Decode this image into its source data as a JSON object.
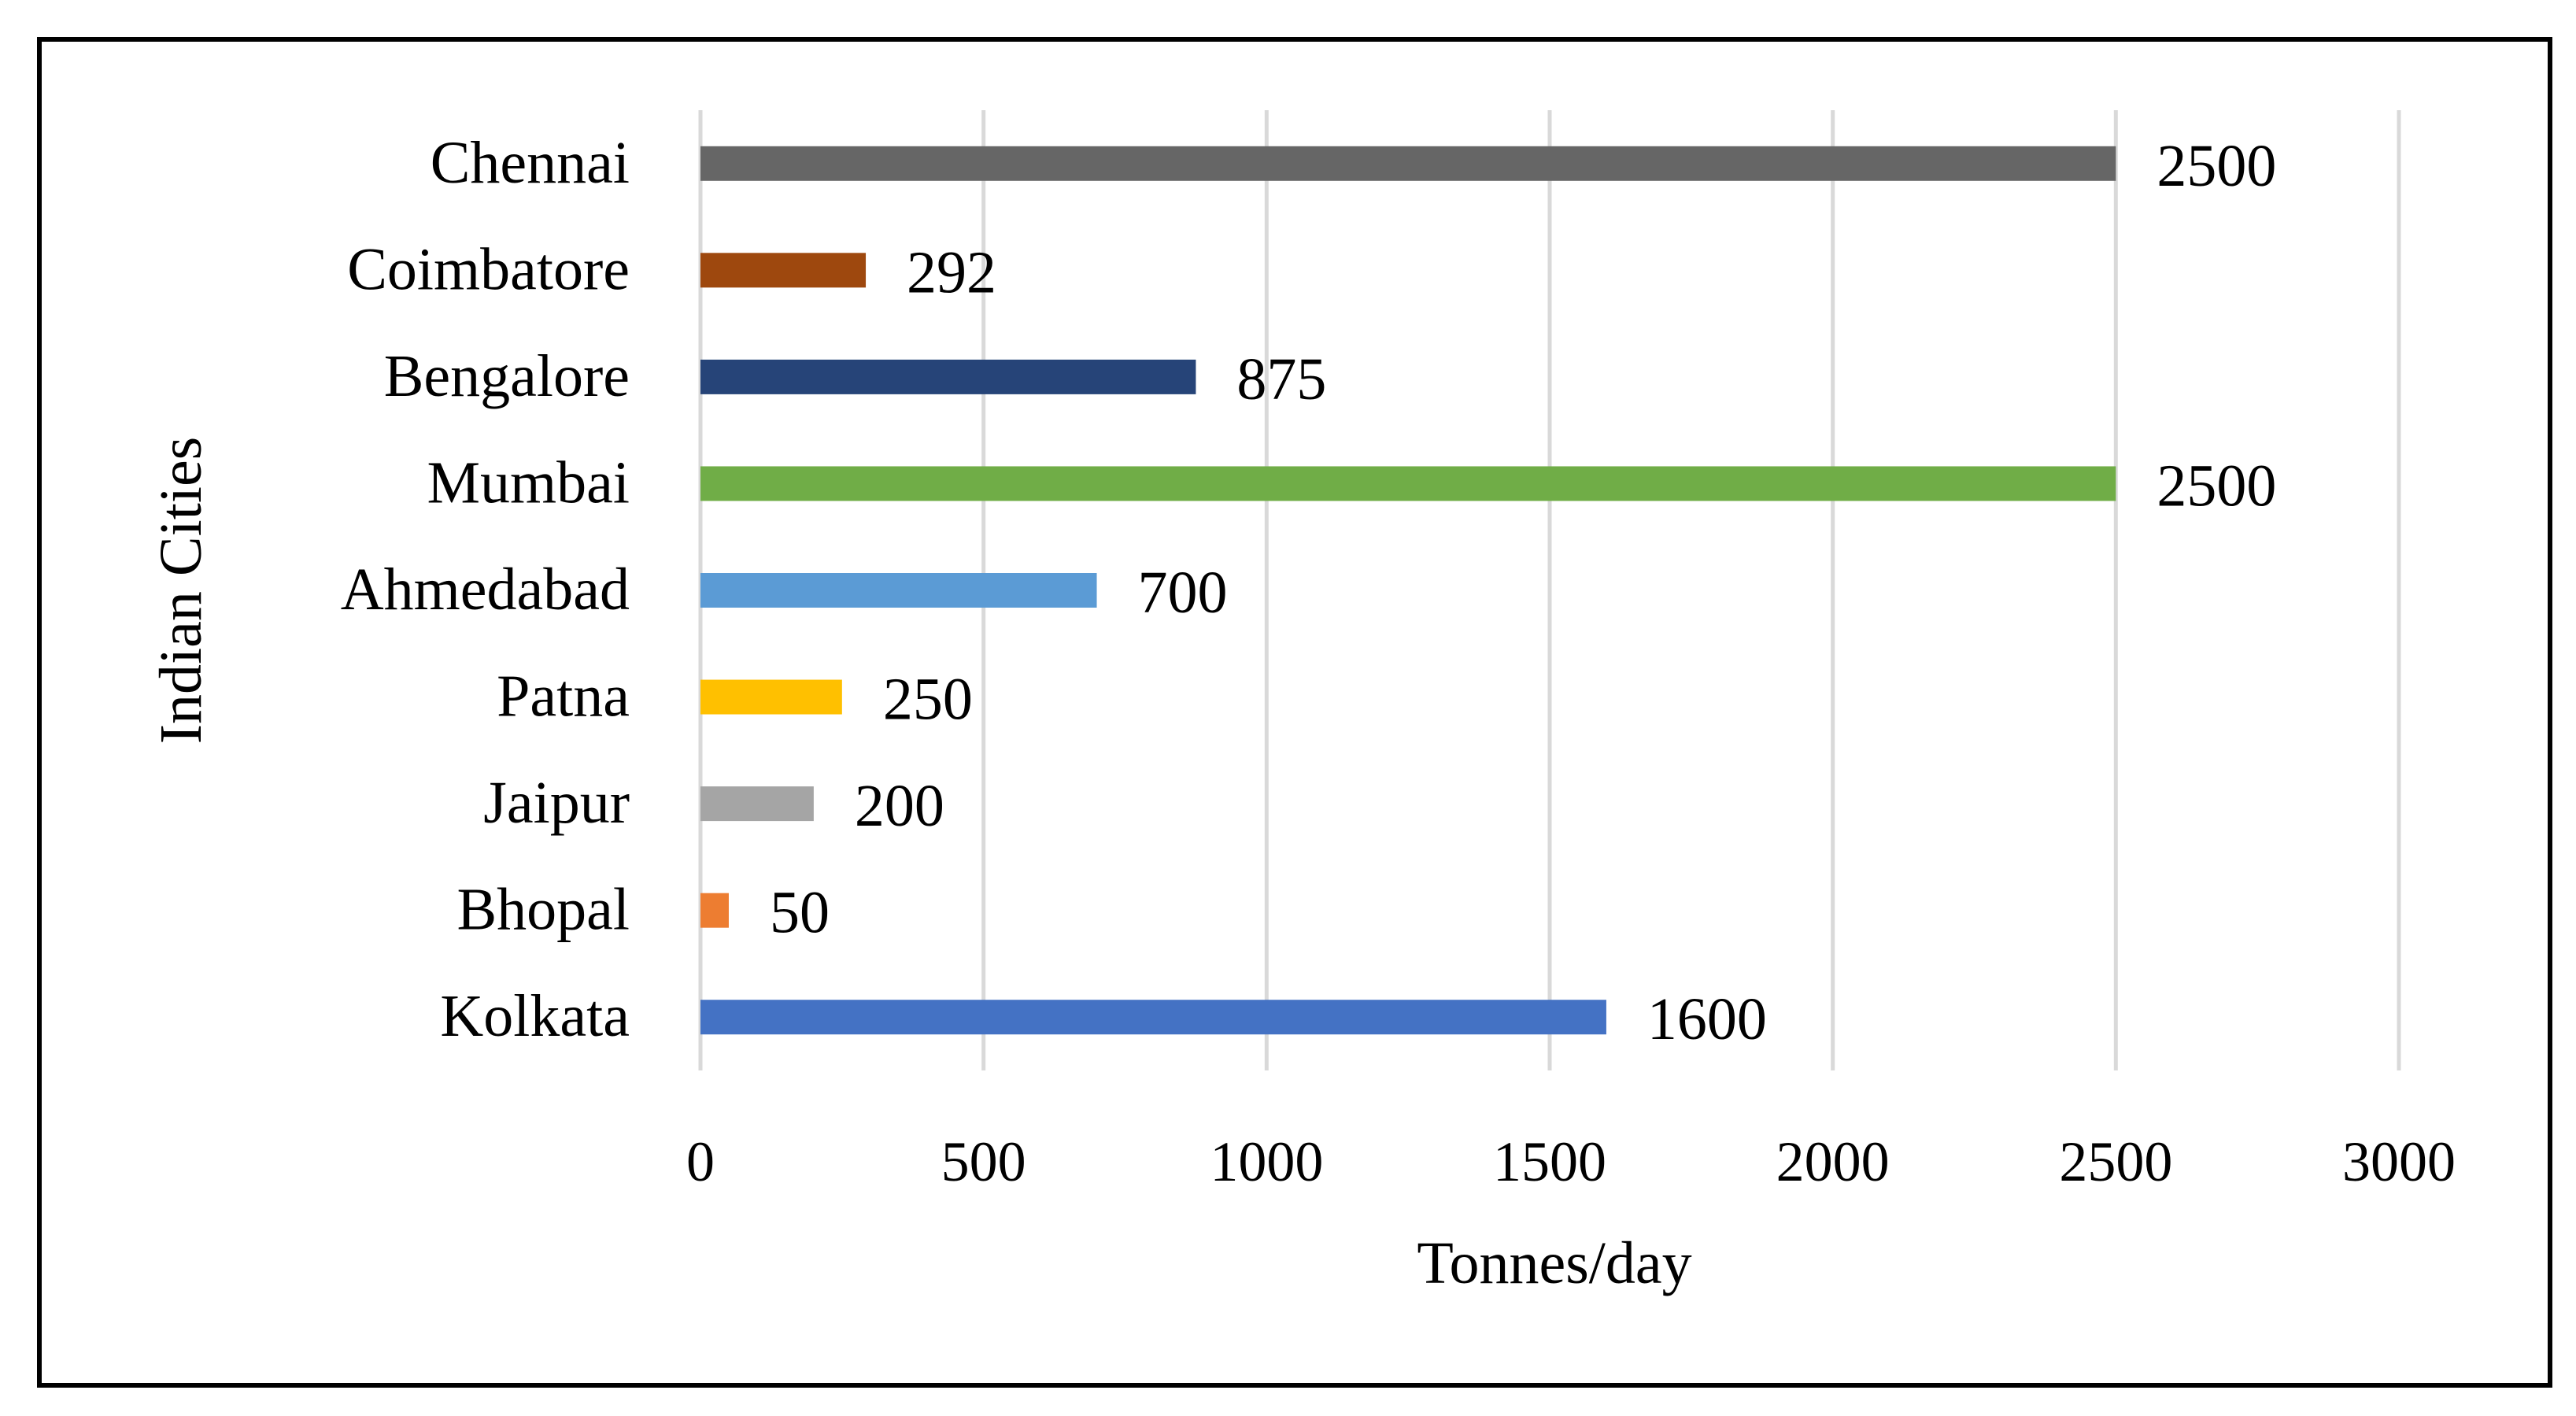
{
  "chart_data": {
    "type": "bar",
    "orientation": "horizontal",
    "title": "",
    "xlabel": "Tonnes/day",
    "ylabel": "Indian Cities",
    "xlim": [
      0,
      3000
    ],
    "xticks": [
      0,
      500,
      1000,
      1500,
      2000,
      2500,
      3000
    ],
    "grid": true,
    "legend": "none",
    "categories": [
      "Chennai",
      "Coimbatore",
      "Bengalore",
      "Mumbai",
      "Ahmedabad",
      "Patna",
      "Jaipur",
      "Bhopal",
      "Kolkata"
    ],
    "values": [
      2500,
      292,
      875,
      2500,
      700,
      250,
      200,
      50,
      1600
    ],
    "colors": [
      "#666666",
      "#9E480E",
      "#264478",
      "#70AD47",
      "#5B9BD5",
      "#FFC000",
      "#A5A5A5",
      "#ED7D31",
      "#4472C4"
    ]
  }
}
